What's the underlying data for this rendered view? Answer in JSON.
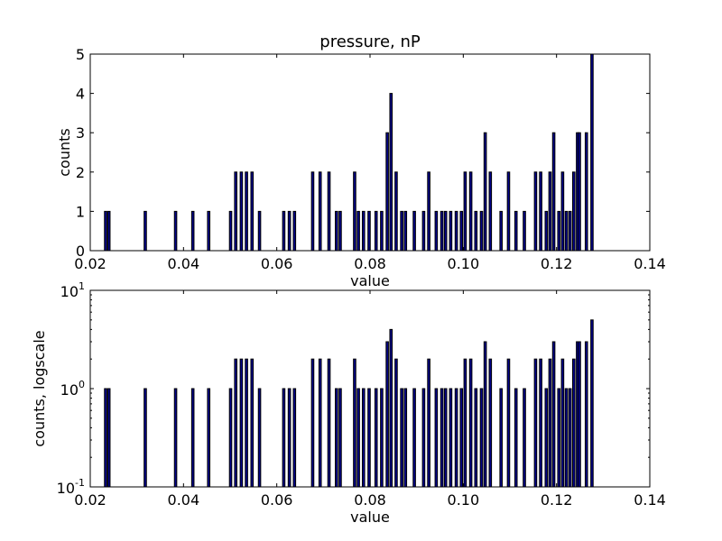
{
  "colors": {
    "bar_fill": "#00008b",
    "bar_edge": "#000000",
    "axes": "#000000",
    "background": "#ffffff"
  },
  "chart_data": [
    {
      "type": "bar",
      "title": "pressure, nP",
      "xlabel": "value",
      "ylabel": "counts",
      "yscale": "linear",
      "xlim": [
        0.02,
        0.14
      ],
      "ylim": [
        0,
        5
      ],
      "grid": false,
      "xticks": [
        "0.02",
        "0.04",
        "0.06",
        "0.08",
        "0.10",
        "0.12",
        "0.14"
      ],
      "yticks": [
        "0",
        "1",
        "2",
        "3",
        "4",
        "5"
      ],
      "x": [
        0.0233,
        0.024,
        0.0318,
        0.0383,
        0.042,
        0.0454,
        0.0501,
        0.0512,
        0.0524,
        0.0535,
        0.0547,
        0.0563,
        0.0615,
        0.0627,
        0.0638,
        0.0677,
        0.0693,
        0.0712,
        0.0728,
        0.0736,
        0.0767,
        0.0775,
        0.0786,
        0.0798,
        0.0813,
        0.0825,
        0.0837,
        0.0845,
        0.0856,
        0.0868,
        0.0876,
        0.0895,
        0.0915,
        0.0926,
        0.0942,
        0.0954,
        0.0962,
        0.0973,
        0.0985,
        0.0996,
        0.1004,
        0.1016,
        0.1027,
        0.1039,
        0.1047,
        0.1058,
        0.1081,
        0.1097,
        0.1113,
        0.1131,
        0.1155,
        0.1166,
        0.1178,
        0.1186,
        0.1194,
        0.1205,
        0.1213,
        0.1221,
        0.1229,
        0.1237,
        0.1245,
        0.1249,
        0.1264,
        0.1276
      ],
      "values": [
        1,
        1,
        1,
        1,
        1,
        1,
        1,
        2,
        2,
        2,
        2,
        1,
        1,
        1,
        1,
        2,
        2,
        2,
        1,
        1,
        2,
        1,
        1,
        1,
        1,
        1,
        3,
        4,
        2,
        1,
        1,
        1,
        1,
        2,
        1,
        1,
        1,
        1,
        1,
        1,
        2,
        2,
        1,
        1,
        3,
        2,
        1,
        2,
        1,
        1,
        2,
        2,
        1,
        2,
        3,
        1,
        2,
        1,
        1,
        2,
        3,
        3,
        3,
        5
      ]
    },
    {
      "type": "bar",
      "title": "",
      "xlabel": "value",
      "ylabel": "counts, logscale",
      "yscale": "log",
      "xlim": [
        0.02,
        0.14
      ],
      "ylim": [
        0.1,
        10
      ],
      "grid": false,
      "xticks": [
        "0.02",
        "0.04",
        "0.06",
        "0.08",
        "0.10",
        "0.12",
        "0.14"
      ],
      "yticks": [
        {
          "base": "10",
          "exp": "-1"
        },
        {
          "base": "10",
          "exp": "0"
        },
        {
          "base": "10",
          "exp": "1"
        }
      ],
      "same_data_as": 0
    }
  ]
}
